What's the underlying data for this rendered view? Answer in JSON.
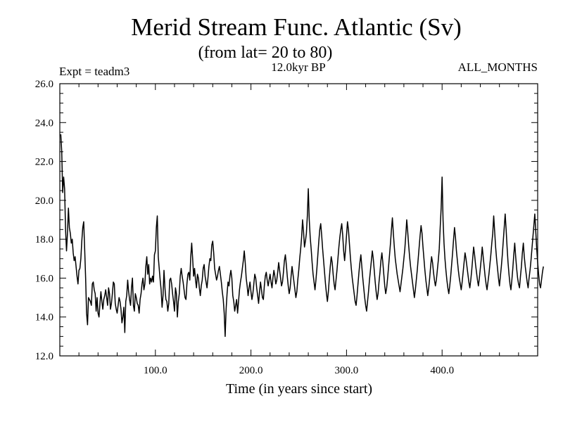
{
  "chart_data": {
    "type": "line",
    "title": "Merid Stream Func. Atlantic (Sv)",
    "subtitle": "(from lat= 20 to 80)",
    "annotations": {
      "left": "Expt = teadm3",
      "center": "12.0kyr BP",
      "right": "ALL_MONTHS"
    },
    "xlabel": "Time (in years since start)",
    "ylabel": "",
    "xlim": [
      0,
      500
    ],
    "ylim": [
      12.0,
      26.0
    ],
    "x_ticks": [
      100,
      200,
      300,
      400
    ],
    "x_tick_labels": [
      "100.0",
      "200.0",
      "300.0",
      "400.0"
    ],
    "y_ticks": [
      12,
      14,
      16,
      18,
      20,
      22,
      24,
      26
    ],
    "y_tick_labels": [
      "12.0",
      "14.0",
      "16.0",
      "18.0",
      "20.0",
      "22.0",
      "24.0",
      "26.0"
    ],
    "grid": false,
    "series": [
      {
        "name": "Merid Stream Func. Atlantic",
        "x_start": 1,
        "x_step": 1,
        "values": [
          23.4,
          22.5,
          20.4,
          21.2,
          20.6,
          18.5,
          17.4,
          18.3,
          19.6,
          18.6,
          18.3,
          17.8,
          18.0,
          17.3,
          16.9,
          17.1,
          16.6,
          16.1,
          15.7,
          16.4,
          16.5,
          17.0,
          17.9,
          18.6,
          18.9,
          17.5,
          16.0,
          14.2,
          13.6,
          15.0,
          14.9,
          14.8,
          14.6,
          15.7,
          15.8,
          15.4,
          15.2,
          14.3,
          15.0,
          14.2,
          14.0,
          14.7,
          15.3,
          14.8,
          14.4,
          14.9,
          15.1,
          15.4,
          15.0,
          14.6,
          15.5,
          15.2,
          14.4,
          14.7,
          15.2,
          15.8,
          15.7,
          14.7,
          14.4,
          14.2,
          14.6,
          15.0,
          14.8,
          14.4,
          13.7,
          14.0,
          14.5,
          13.2,
          14.8,
          15.1,
          15.9,
          15.3,
          14.9,
          14.6,
          15.5,
          16.0,
          14.6,
          14.3,
          15.2,
          15.0,
          14.7,
          14.6,
          14.2,
          14.9,
          15.2,
          15.7,
          16.0,
          15.4,
          15.7,
          16.6,
          17.1,
          16.2,
          16.7,
          15.7,
          16.0,
          15.8,
          16.1,
          15.8,
          17.2,
          17.4,
          18.6,
          19.2,
          17.1,
          16.5,
          15.9,
          15.4,
          14.5,
          15.1,
          16.4,
          15.5,
          14.9,
          14.8,
          14.3,
          14.7,
          15.9,
          16.0,
          15.7,
          15.2,
          14.8,
          14.3,
          15.5,
          15.2,
          14.0,
          14.8,
          15.2,
          16.1,
          16.5,
          16.1,
          15.8,
          15.4,
          15.0,
          14.9,
          15.7,
          16.2,
          16.3,
          15.9,
          17.1,
          17.8,
          17.0,
          16.1,
          16.5,
          15.9,
          15.5,
          16.2,
          16.0,
          15.5,
          15.1,
          15.6,
          15.9,
          16.5,
          16.7,
          16.1,
          15.8,
          15.5,
          16.0,
          16.6,
          17.0,
          16.9,
          17.7,
          17.9,
          17.3,
          16.5,
          16.2,
          15.9,
          16.1,
          16.4,
          16.6,
          16.2,
          15.8,
          15.3,
          14.9,
          14.2,
          13.0,
          14.4,
          15.2,
          15.8,
          15.6,
          16.1,
          16.4,
          16.0,
          15.1,
          14.8,
          14.3,
          14.6,
          14.9,
          14.2,
          14.8,
          15.4,
          15.8,
          16.1,
          16.5,
          16.9,
          17.4,
          16.8,
          16.0,
          15.6,
          15.1,
          15.5,
          15.8,
          15.3,
          14.9,
          15.2,
          15.7,
          16.2,
          16.0,
          15.5,
          15.1,
          14.7,
          15.3,
          15.8,
          15.4,
          15.0,
          14.9,
          15.6,
          16.1,
          16.3,
          15.9,
          15.6,
          15.9,
          16.2,
          15.8,
          15.5,
          16.0,
          16.4,
          16.1,
          15.7,
          15.9,
          16.3,
          16.8,
          16.4,
          16.0,
          15.6,
          15.8,
          16.3,
          16.9,
          17.2,
          16.7,
          16.1,
          15.6,
          15.2,
          15.5,
          16.1,
          16.6,
          16.2,
          15.8,
          15.4,
          15.0,
          15.3,
          15.9,
          16.4,
          17.0,
          17.5,
          18.1,
          19.0,
          18.4,
          17.6,
          17.9,
          18.3,
          19.2,
          20.6,
          19.0,
          18.1,
          17.5,
          16.8,
          16.2,
          15.8,
          15.4,
          15.9,
          16.5,
          17.2,
          17.9,
          18.5,
          18.8,
          18.2,
          17.5,
          16.9,
          16.3,
          15.7,
          15.2,
          14.8,
          15.3,
          16.0,
          16.6,
          17.1,
          16.8,
          16.2,
          15.7,
          15.4,
          15.9,
          16.4,
          17.0,
          17.6,
          18.1,
          18.5,
          18.8,
          18.2,
          17.4,
          16.9,
          17.5,
          18.2,
          18.9,
          18.5,
          17.8,
          17.1,
          16.5,
          16.0,
          15.6,
          15.2,
          14.8,
          14.6,
          15.1,
          15.7,
          16.3,
          16.8,
          17.2,
          16.6,
          16.0,
          15.5,
          15.0,
          14.6,
          14.3,
          14.8,
          15.3,
          15.9,
          16.4,
          16.9,
          17.4,
          17.0,
          16.4,
          15.8,
          15.3,
          14.9,
          15.2,
          15.8,
          16.3,
          16.9,
          17.3,
          16.8,
          16.2,
          15.6,
          15.2,
          15.5,
          16.0,
          16.6,
          17.2,
          17.8,
          18.5,
          19.1,
          18.3,
          17.6,
          17.0,
          16.6,
          16.2,
          15.9,
          15.6,
          15.3,
          15.7,
          16.1,
          16.5,
          17.0,
          17.5,
          18.2,
          19.0,
          18.4,
          17.7,
          17.1,
          16.6,
          16.2,
          15.8,
          15.4,
          15.0,
          15.4,
          15.9,
          16.4,
          17.0,
          17.6,
          18.2,
          18.7,
          18.3,
          17.6,
          17.0,
          16.4,
          15.9,
          15.5,
          15.1,
          15.5,
          16.0,
          16.6,
          17.1,
          16.8,
          16.3,
          15.9,
          15.6,
          15.9,
          16.4,
          16.9,
          17.5,
          18.6,
          19.6,
          21.2,
          19.0,
          17.8,
          17.0,
          16.4,
          15.9,
          15.5,
          15.2,
          15.6,
          16.1,
          16.7,
          17.3,
          18.0,
          18.6,
          18.1,
          17.4,
          16.9,
          16.4,
          16.0,
          15.7,
          15.4,
          15.8,
          16.3,
          16.8,
          17.3,
          17.0,
          16.6,
          16.2,
          15.8,
          15.5,
          15.9,
          16.4,
          17.0,
          17.6,
          17.2,
          16.7,
          16.3,
          15.9,
          15.6,
          16.0,
          16.5,
          17.0,
          17.6,
          17.1,
          16.6,
          16.1,
          15.7,
          15.4,
          15.8,
          16.2,
          16.7,
          17.2,
          17.8,
          18.3,
          19.2,
          18.4,
          17.6,
          17.0,
          16.5,
          16.0,
          15.6,
          16.1,
          16.6,
          17.2,
          17.9,
          18.6,
          19.3,
          18.5,
          17.6,
          16.8,
          16.2,
          15.7,
          15.4,
          15.9,
          16.5,
          17.2,
          17.8,
          17.1,
          16.5,
          16.0,
          15.7,
          15.5,
          16.1,
          16.6,
          17.3,
          17.8,
          17.1,
          16.6,
          16.2,
          15.8,
          15.5,
          16.0,
          16.4,
          16.9,
          17.5,
          18.1,
          18.7,
          19.3,
          18.4,
          17.5,
          16.8,
          16.2,
          15.7,
          15.5,
          15.9,
          16.3,
          16.6
        ]
      }
    ]
  }
}
